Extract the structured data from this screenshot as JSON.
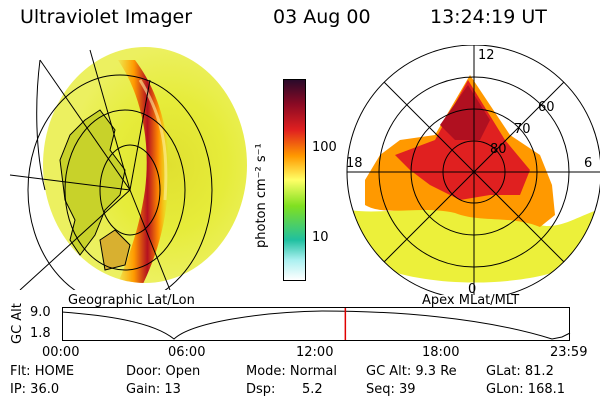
{
  "header": {
    "instrument": "Ultraviolet Imager",
    "date": "03 Aug 00",
    "time": "13:24:19 UT"
  },
  "left_panel": {
    "label": "Geographic Lat/Lon"
  },
  "right_panel": {
    "label": "Apex MLat/MLT",
    "mlt_labels": [
      "12",
      "18",
      "6",
      "0"
    ],
    "mlat_labels": [
      "60",
      "70",
      "80"
    ]
  },
  "colorbar": {
    "unit_label": "photon cm⁻² s⁻¹",
    "ticks": [
      "100",
      "10"
    ],
    "colors": [
      "#2a0a2a",
      "#8a0a24",
      "#e02020",
      "#ff9900",
      "#ffff66",
      "#80e020",
      "#20c0a0",
      "#aaf0f0",
      "#ffffff"
    ]
  },
  "altitude_plot": {
    "ylabel": "GC Alt",
    "yticks": [
      "9.0",
      "1.8"
    ],
    "xticks": [
      "00:00",
      "06:00",
      "12:00",
      "18:00",
      "23:59"
    ],
    "current_time_fraction": 0.558,
    "marker_color": "#e00000"
  },
  "status": {
    "flt": "Flt: HOME",
    "ip": "IP: 36.0",
    "door": "Door: Open",
    "gain": "Gain: 13",
    "mode": "Mode: Normal",
    "dsp_label": "Dsp:",
    "dsp_value": "5.2",
    "gc_alt": "GC Alt: 9.3 Re",
    "seq": "Seq: 39",
    "glat": "GLat: 81.2",
    "glon": "GLon: 168.1"
  }
}
